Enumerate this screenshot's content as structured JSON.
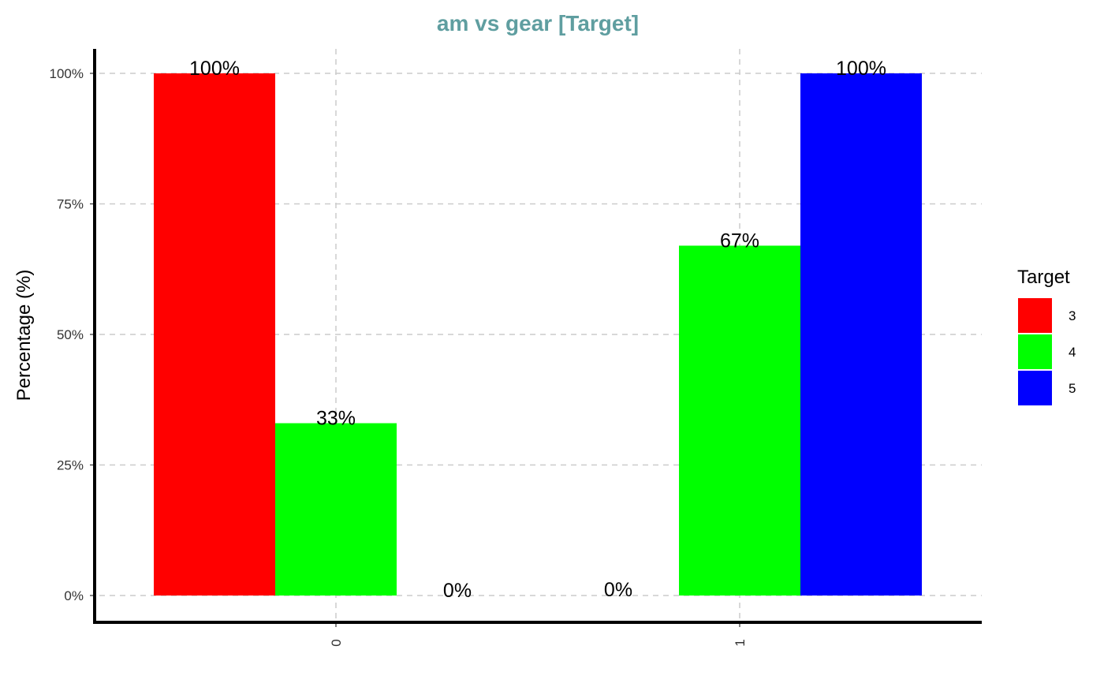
{
  "chart_data": {
    "type": "bar",
    "title": "am vs gear [Target]",
    "xlabel": "",
    "ylabel": "Percentage (%)",
    "categories": [
      "0",
      "1"
    ],
    "series": [
      {
        "name": "3",
        "color": "#ff0000",
        "values": [
          100,
          0
        ],
        "labels": [
          "100%",
          ""
        ]
      },
      {
        "name": "4",
        "color": "#00ff00",
        "values": [
          33,
          67
        ],
        "labels": [
          "33%",
          "67%"
        ]
      },
      {
        "name": "5",
        "color": "#0000ff",
        "values": [
          0,
          100
        ],
        "labels": [
          "0%",
          "100%"
        ]
      }
    ],
    "extra_labels": [
      {
        "category": "1",
        "series": "3",
        "text": "0%"
      }
    ],
    "ylim": [
      0,
      100
    ],
    "yticks": [
      0,
      25,
      50,
      75,
      100
    ],
    "ytick_labels": [
      "0%",
      "25%",
      "50%",
      "75%",
      "100%"
    ],
    "grid": true,
    "grid_style": "dashed",
    "legend_title": "Target",
    "legend_position": "right",
    "title_color": "#5f9ea0"
  }
}
